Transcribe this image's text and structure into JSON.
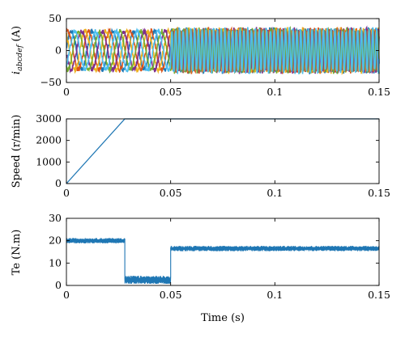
{
  "chart_data": [
    {
      "type": "line",
      "panel": "currents",
      "ylabel_main": "i",
      "ylabel_sub": "abcdef",
      "ylabel_unit": " (A)",
      "xlim": [
        0,
        0.15
      ],
      "ylim": [
        -50,
        50
      ],
      "xticks": [
        0,
        0.05,
        0.1,
        0.15
      ],
      "xtick_labels": [
        "0",
        "0.05",
        "0.1",
        "0.15"
      ],
      "yticks": [
        -50,
        0,
        50
      ],
      "ytick_labels": [
        "−50",
        "0",
        "50"
      ],
      "phases": 6,
      "amplitude_startup": 30,
      "frequency_startup_hz": 100,
      "amplitude_steady": 33,
      "frequency_steady_hz": 550,
      "transition_time": 0.05,
      "colors": [
        "#1f77b4",
        "#d95319",
        "#edb120",
        "#7e2f8e",
        "#77ac30",
        "#4dbeee"
      ]
    },
    {
      "type": "line",
      "panel": "speed",
      "ylabel": "Speed (r/min)",
      "xlim": [
        0,
        0.15
      ],
      "ylim": [
        0,
        3000
      ],
      "xticks": [
        0,
        0.05,
        0.1,
        0.15
      ],
      "xtick_labels": [
        "0",
        "0.05",
        "0.1",
        "0.15"
      ],
      "yticks": [
        0,
        1000,
        2000,
        3000
      ],
      "ytick_labels": [
        "0",
        "1000",
        "2000",
        "3000"
      ],
      "series": [
        {
          "x": [
            0,
            0.028,
            0.15
          ],
          "y": [
            0,
            3000,
            3000
          ],
          "color": "#1f77b4"
        }
      ]
    },
    {
      "type": "line",
      "panel": "torque",
      "ylabel": "Te (N.m)",
      "xlabel": "Time (s)",
      "xlim": [
        0,
        0.15
      ],
      "ylim": [
        0,
        30
      ],
      "xticks": [
        0,
        0.05,
        0.1,
        0.15
      ],
      "xtick_labels": [
        "0",
        "0.05",
        "0.1",
        "0.15"
      ],
      "yticks": [
        0,
        10,
        20,
        30
      ],
      "ytick_labels": [
        "0",
        "10",
        "20",
        "30"
      ],
      "segments": [
        {
          "from": 0,
          "to": 0.028,
          "level": 20,
          "ripple": 1.2
        },
        {
          "from": 0.028,
          "to": 0.05,
          "level": 2.5,
          "ripple": 1.8
        },
        {
          "from": 0.05,
          "to": 0.15,
          "level": 16.5,
          "ripple": 1.2
        }
      ],
      "color": "#1f77b4"
    }
  ]
}
